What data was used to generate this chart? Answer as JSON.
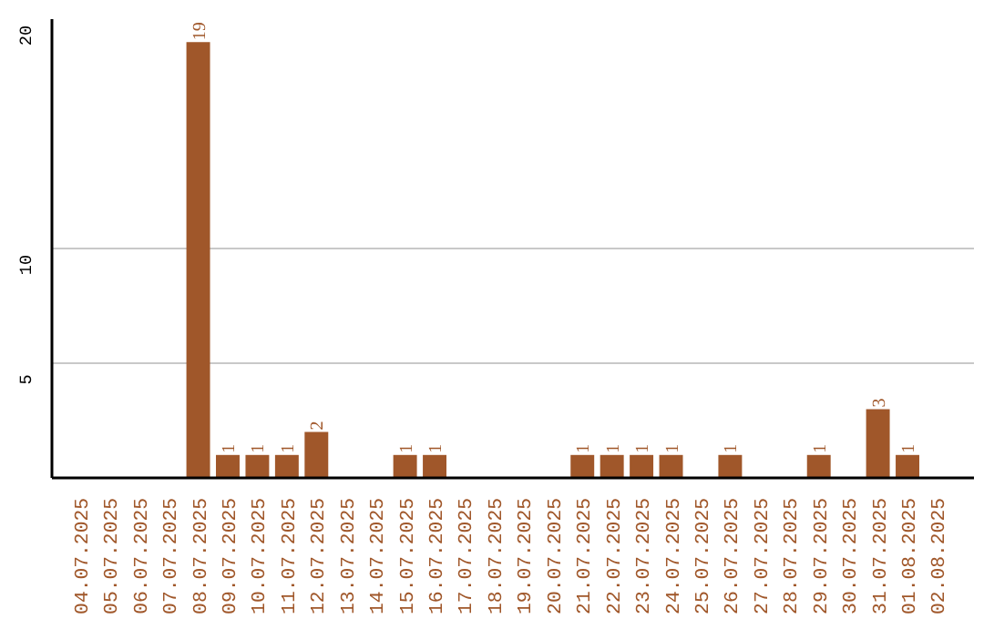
{
  "chart_data": {
    "type": "bar",
    "categories": [
      "04.07.2025",
      "05.07.2025",
      "06.07.2025",
      "07.07.2025",
      "08.07.2025",
      "09.07.2025",
      "10.07.2025",
      "11.07.2025",
      "12.07.2025",
      "13.07.2025",
      "14.07.2025",
      "15.07.2025",
      "16.07.2025",
      "17.07.2025",
      "18.07.2025",
      "19.07.2025",
      "20.07.2025",
      "21.07.2025",
      "22.07.2025",
      "23.07.2025",
      "24.07.2025",
      "25.07.2025",
      "26.07.2025",
      "27.07.2025",
      "28.07.2025",
      "29.07.2025",
      "30.07.2025",
      "31.07.2025",
      "01.08.2025",
      "02.08.2025"
    ],
    "values": [
      0,
      0,
      0,
      0,
      19,
      1,
      1,
      1,
      2,
      0,
      0,
      1,
      1,
      0,
      0,
      0,
      0,
      1,
      1,
      1,
      1,
      0,
      1,
      0,
      0,
      1,
      0,
      3,
      1,
      0
    ],
    "value_labels": [
      null,
      null,
      null,
      null,
      "19",
      "1",
      "1",
      "1",
      "2",
      null,
      null,
      "1",
      "1",
      null,
      null,
      null,
      null,
      "1",
      "1",
      "1",
      "1",
      null,
      "1",
      null,
      null,
      "1",
      null,
      "3",
      "1",
      null
    ],
    "color": "#a0572a",
    "ylim": [
      0,
      20
    ],
    "yticks": [
      5,
      10,
      20
    ],
    "grid": "y"
  }
}
